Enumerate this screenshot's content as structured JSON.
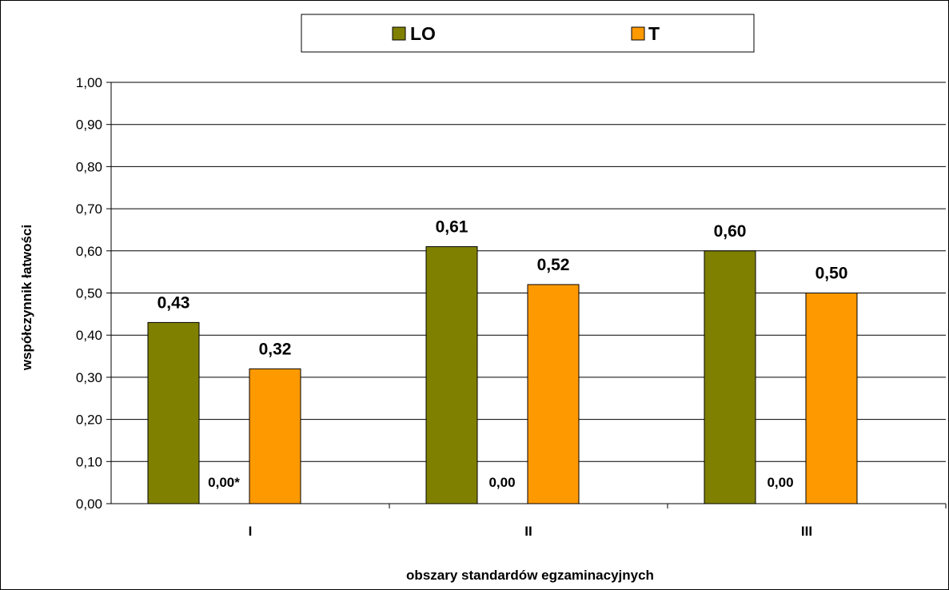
{
  "chart_data": {
    "type": "bar",
    "categories": [
      "I",
      "II",
      "III"
    ],
    "series": [
      {
        "name": "LO",
        "values": [
          0.43,
          0.61,
          0.6
        ],
        "color": "#808000"
      },
      {
        "name": "T",
        "values": [
          0.32,
          0.52,
          0.5
        ],
        "color": "#FF9900"
      }
    ],
    "zero_labels": [
      "0,00*",
      "0,00",
      "0,00"
    ],
    "xlabel": "obszary standardów egzaminacyjnych",
    "ylabel": "współczynnik łatwości",
    "ylim": [
      0,
      1
    ],
    "yticks": [
      "0,00",
      "0,10",
      "0,20",
      "0,30",
      "0,40",
      "0,50",
      "0,60",
      "0,70",
      "0,80",
      "0,90",
      "1,00"
    ],
    "grid": true,
    "legend": "top-center"
  }
}
